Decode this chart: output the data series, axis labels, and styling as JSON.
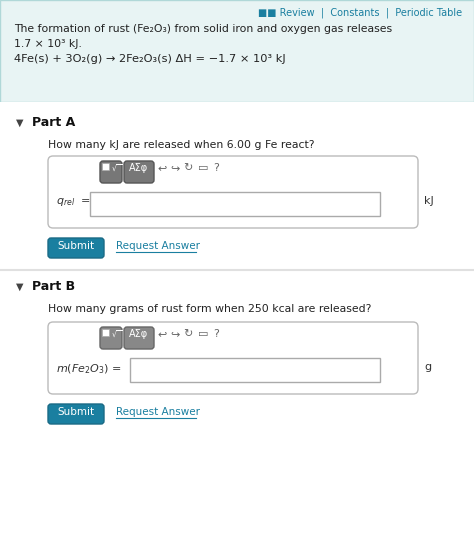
{
  "bg_color": "#f0f0f0",
  "header_bg": "#e8f4f4",
  "header_border": "#b0d8d8",
  "teal_color": "#1a7fa0",
  "dark_teal": "#1a6a85",
  "button_color": "#1a7fa0",
  "text_color": "#222222",
  "header_text_line1": "The formation of rust (Fe₂O₃) from solid iron and oxygen gas releases",
  "header_text_line2": "1.7 × 10³ kJ.",
  "header_text_line3": "4Fe(s) + 3O₂(g) → 2Fe₂O₃(s) ΔH = −1.7 × 10³ kJ",
  "review_label": "■■ Review  |  Constants  |  Periodic Table",
  "partA_label": "Part A",
  "partA_question": "How many kJ are released when 6.00 g Fe react?",
  "partA_unit": "kJ",
  "partB_label": "Part B",
  "partB_question": "How many grams of rust form when 250 kcal are released?",
  "partB_unit": "g",
  "submit_text": "Submit",
  "request_text": "Request Answer",
  "toolbar_symbols": "AΣφ",
  "fig_width": 4.74,
  "fig_height": 5.33,
  "dpi": 100
}
